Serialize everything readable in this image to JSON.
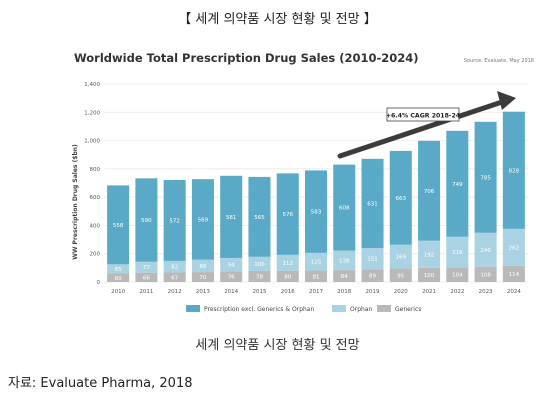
{
  "page_title": "【 세계 의약품 시장 현황 및 전망 】",
  "caption": "세계 의약품 시장 현황 및 전망",
  "source_note": "자료: Evaluate Pharma, 2018",
  "chart_data": {
    "type": "bar",
    "stacked": true,
    "title": "Worldwide Total Prescription Drug Sales (2010-2024)",
    "source": "Source: Evaluate, May 2018",
    "ylabel": "WW Prescription Drug Sales ($bn)",
    "xlabel": "",
    "ylim": [
      0,
      1400
    ],
    "yticks": [
      "0",
      "200",
      "400",
      "600",
      "800",
      "1,000",
      "1,200",
      "1,400"
    ],
    "grid": true,
    "legend_position": "bottom",
    "categories": [
      "2010",
      "2011",
      "2012",
      "2013",
      "2014",
      "2015",
      "2016",
      "2017",
      "2018",
      "2019",
      "2020",
      "2021",
      "2022",
      "2023",
      "2024"
    ],
    "series": [
      {
        "name": "Generics",
        "color": "#b9b9b9",
        "values": [
          60,
          66,
          67,
          70,
          76,
          78,
          80,
          81,
          84,
          89,
          95,
          100,
          104,
          108,
          114
        ]
      },
      {
        "name": "Orphan",
        "color": "#a9d3e2",
        "values": [
          65,
          77,
          82,
          88,
          94,
          100,
          112,
          125,
          138,
          151,
          169,
          192,
          216,
          240,
          262
        ]
      },
      {
        "name": "Prescription excl. Generics & Orphan",
        "color": "#5aaac7",
        "values": [
          558,
          590,
          572,
          569,
          581,
          565,
          576,
          583,
          608,
          631,
          663,
          706,
          749,
          785,
          828
        ]
      }
    ],
    "legend_order": [
      "Prescription excl. Generics & Orphan",
      "Orphan",
      "Generics"
    ],
    "annotation": "+6.4% CAGR 2018-24"
  }
}
